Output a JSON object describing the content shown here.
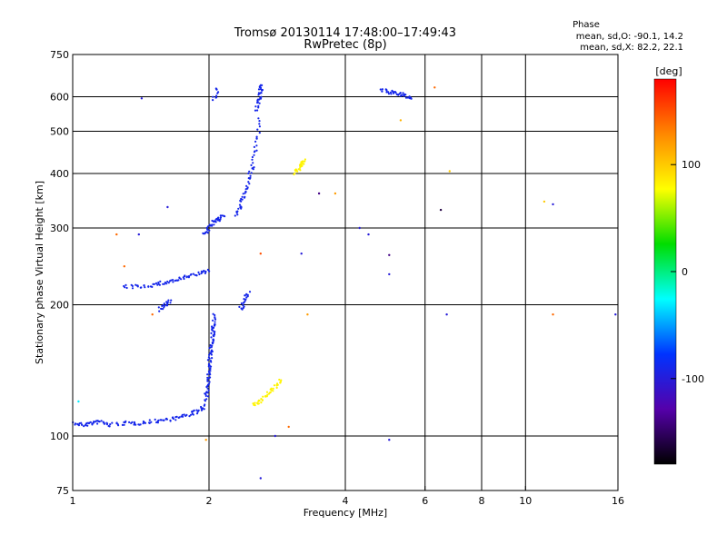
{
  "chart_data": {
    "type": "scatter",
    "title": "Tromsø 20130114 17:48:00–17:49:43",
    "subtitle": "RwPretec (8p)",
    "xlabel": "Frequency [MHz]",
    "ylabel": "Stationary phase Virtual Height [km]",
    "x_scale": "log",
    "y_scale": "log",
    "xlim": [
      1,
      16
    ],
    "ylim": [
      75,
      750
    ],
    "x_ticks": [
      1,
      2,
      4,
      6,
      8,
      10,
      16
    ],
    "y_ticks": [
      75,
      100,
      200,
      300,
      400,
      500,
      600,
      750
    ],
    "grid": true,
    "phase_info": {
      "title": "Phase",
      "line1": "mean, sd,O: -90.1, 14.2",
      "line2": "mean, sd,X:  82.2, 22.1"
    },
    "colorbar": {
      "label": "[deg]",
      "range": [
        -180,
        180
      ],
      "ticks": [
        100,
        0,
        -100
      ],
      "tick_labels": [
        "100",
        "0",
        "-100"
      ],
      "colors": [
        "#ff0000",
        "#ff8800",
        "#ffff00",
        "#00dd00",
        "#00ffff",
        "#0033ff",
        "#5500aa",
        "#000000"
      ]
    },
    "series": [
      {
        "mode": "O",
        "phase_deg": -90,
        "segments": [
          {
            "x": [
              1.0,
              1.05,
              1.1,
              1.15,
              1.2,
              1.3,
              1.4,
              1.5,
              1.6,
              1.7,
              1.8,
              1.9,
              1.97
            ],
            "y": [
              107,
              106,
              107,
              108,
              106,
              107,
              107,
              108,
              109,
              110,
              112,
              114,
              118
            ]
          },
          {
            "x": [
              1.97,
              1.98,
              1.99,
              2.0,
              2.01,
              2.02,
              2.03,
              2.04,
              2.05,
              2.06
            ],
            "y": [
              120,
              128,
              135,
              142,
              150,
              158,
              165,
              172,
              180,
              190
            ]
          },
          {
            "x": [
              1.3,
              1.4,
              1.5,
              1.6,
              1.7,
              1.8,
              1.9,
              2.0
            ],
            "y": [
              220,
              220,
              222,
              225,
              228,
              232,
              236,
              240
            ]
          },
          {
            "x": [
              1.55,
              1.6,
              1.65
            ],
            "y": [
              195,
              200,
              205
            ]
          },
          {
            "x": [
              1.95,
              2.0,
              2.05,
              2.1,
              2.15
            ],
            "y": [
              290,
              300,
              310,
              315,
              320
            ]
          },
          {
            "x": [
              2.3,
              2.35,
              2.4,
              2.45,
              2.5,
              2.55,
              2.6
            ],
            "y": [
              320,
              340,
              360,
              390,
              420,
              470,
              540
            ]
          },
          {
            "x": [
              2.55,
              2.58,
              2.6,
              2.62
            ],
            "y": [
              560,
              590,
              620,
              640
            ]
          },
          {
            "x": [
              2.05,
              2.1
            ],
            "y": [
              590,
              630
            ]
          },
          {
            "x": [
              2.35,
              2.4,
              2.45
            ],
            "y": [
              195,
              205,
              215
            ]
          },
          {
            "x": [
              4.8,
              5.0,
              5.2,
              5.4,
              5.6
            ],
            "y": [
              620,
              615,
              610,
              605,
              595
            ]
          }
        ]
      },
      {
        "mode": "X",
        "phase_deg": 82,
        "segments": [
          {
            "x": [
              2.5,
              2.6,
              2.7,
              2.8,
              2.9
            ],
            "y": [
              118,
              120,
              125,
              130,
              136
            ]
          },
          {
            "x": [
              3.1,
              3.15,
              3.2,
              3.25
            ],
            "y": [
              400,
              410,
              420,
              430
            ]
          }
        ]
      }
    ],
    "scatter_points": [
      {
        "x": 1.42,
        "y": 595,
        "phase_deg": -100
      },
      {
        "x": 1.25,
        "y": 290,
        "phase_deg": 140
      },
      {
        "x": 1.4,
        "y": 290,
        "phase_deg": -100
      },
      {
        "x": 1.62,
        "y": 335,
        "phase_deg": -100
      },
      {
        "x": 1.3,
        "y": 245,
        "phase_deg": 140
      },
      {
        "x": 1.5,
        "y": 190,
        "phase_deg": 140
      },
      {
        "x": 1.03,
        "y": 120,
        "phase_deg": -30
      },
      {
        "x": 2.6,
        "y": 262,
        "phase_deg": 150
      },
      {
        "x": 3.2,
        "y": 262,
        "phase_deg": -100
      },
      {
        "x": 3.3,
        "y": 190,
        "phase_deg": 120
      },
      {
        "x": 3.5,
        "y": 360,
        "phase_deg": -140
      },
      {
        "x": 3.8,
        "y": 360,
        "phase_deg": 120
      },
      {
        "x": 4.3,
        "y": 300,
        "phase_deg": -100
      },
      {
        "x": 4.5,
        "y": 290,
        "phase_deg": -100
      },
      {
        "x": 5.0,
        "y": 260,
        "phase_deg": -140
      },
      {
        "x": 5.0,
        "y": 235,
        "phase_deg": -100
      },
      {
        "x": 5.3,
        "y": 530,
        "phase_deg": 110
      },
      {
        "x": 6.3,
        "y": 630,
        "phase_deg": 140
      },
      {
        "x": 6.5,
        "y": 330,
        "phase_deg": -160
      },
      {
        "x": 6.8,
        "y": 405,
        "phase_deg": 100
      },
      {
        "x": 6.7,
        "y": 190,
        "phase_deg": -100
      },
      {
        "x": 11.0,
        "y": 345,
        "phase_deg": 100
      },
      {
        "x": 11.5,
        "y": 340,
        "phase_deg": -100
      },
      {
        "x": 11.5,
        "y": 190,
        "phase_deg": 140
      },
      {
        "x": 15.8,
        "y": 190,
        "phase_deg": -100
      },
      {
        "x": 5.0,
        "y": 98,
        "phase_deg": -100
      },
      {
        "x": 2.6,
        "y": 80,
        "phase_deg": -100
      },
      {
        "x": 2.8,
        "y": 100,
        "phase_deg": -100
      },
      {
        "x": 3.0,
        "y": 105,
        "phase_deg": 140
      },
      {
        "x": 1.97,
        "y": 98,
        "phase_deg": 120
      }
    ]
  }
}
